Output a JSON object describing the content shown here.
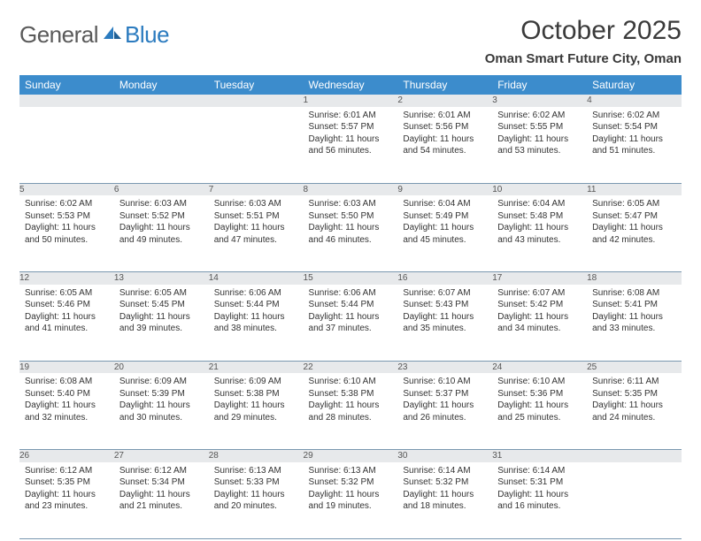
{
  "logo": {
    "word1": "General",
    "word2": "Blue"
  },
  "title": "October 2025",
  "location": "Oman Smart Future City, Oman",
  "colors": {
    "header_bg": "#3c8ccc",
    "header_text": "#ffffff",
    "daynum_bg": "#e7e9eb",
    "daynum_text": "#555555",
    "cell_border": "#7a98b0",
    "logo_gray": "#5a5a5a",
    "logo_blue": "#2b7bbf",
    "body_text": "#333333",
    "page_bg": "#ffffff"
  },
  "typography": {
    "title_fontsize": 30,
    "location_fontsize": 15,
    "weekday_fontsize": 12,
    "daynum_fontsize": 12,
    "cell_fontsize": 10,
    "logo_fontsize": 26
  },
  "weekdays": [
    "Sunday",
    "Monday",
    "Tuesday",
    "Wednesday",
    "Thursday",
    "Friday",
    "Saturday"
  ],
  "weeks": [
    [
      null,
      null,
      null,
      {
        "n": "1",
        "sunrise": "Sunrise: 6:01 AM",
        "sunset": "Sunset: 5:57 PM",
        "daylight": "Daylight: 11 hours and 56 minutes."
      },
      {
        "n": "2",
        "sunrise": "Sunrise: 6:01 AM",
        "sunset": "Sunset: 5:56 PM",
        "daylight": "Daylight: 11 hours and 54 minutes."
      },
      {
        "n": "3",
        "sunrise": "Sunrise: 6:02 AM",
        "sunset": "Sunset: 5:55 PM",
        "daylight": "Daylight: 11 hours and 53 minutes."
      },
      {
        "n": "4",
        "sunrise": "Sunrise: 6:02 AM",
        "sunset": "Sunset: 5:54 PM",
        "daylight": "Daylight: 11 hours and 51 minutes."
      }
    ],
    [
      {
        "n": "5",
        "sunrise": "Sunrise: 6:02 AM",
        "sunset": "Sunset: 5:53 PM",
        "daylight": "Daylight: 11 hours and 50 minutes."
      },
      {
        "n": "6",
        "sunrise": "Sunrise: 6:03 AM",
        "sunset": "Sunset: 5:52 PM",
        "daylight": "Daylight: 11 hours and 49 minutes."
      },
      {
        "n": "7",
        "sunrise": "Sunrise: 6:03 AM",
        "sunset": "Sunset: 5:51 PM",
        "daylight": "Daylight: 11 hours and 47 minutes."
      },
      {
        "n": "8",
        "sunrise": "Sunrise: 6:03 AM",
        "sunset": "Sunset: 5:50 PM",
        "daylight": "Daylight: 11 hours and 46 minutes."
      },
      {
        "n": "9",
        "sunrise": "Sunrise: 6:04 AM",
        "sunset": "Sunset: 5:49 PM",
        "daylight": "Daylight: 11 hours and 45 minutes."
      },
      {
        "n": "10",
        "sunrise": "Sunrise: 6:04 AM",
        "sunset": "Sunset: 5:48 PM",
        "daylight": "Daylight: 11 hours and 43 minutes."
      },
      {
        "n": "11",
        "sunrise": "Sunrise: 6:05 AM",
        "sunset": "Sunset: 5:47 PM",
        "daylight": "Daylight: 11 hours and 42 minutes."
      }
    ],
    [
      {
        "n": "12",
        "sunrise": "Sunrise: 6:05 AM",
        "sunset": "Sunset: 5:46 PM",
        "daylight": "Daylight: 11 hours and 41 minutes."
      },
      {
        "n": "13",
        "sunrise": "Sunrise: 6:05 AM",
        "sunset": "Sunset: 5:45 PM",
        "daylight": "Daylight: 11 hours and 39 minutes."
      },
      {
        "n": "14",
        "sunrise": "Sunrise: 6:06 AM",
        "sunset": "Sunset: 5:44 PM",
        "daylight": "Daylight: 11 hours and 38 minutes."
      },
      {
        "n": "15",
        "sunrise": "Sunrise: 6:06 AM",
        "sunset": "Sunset: 5:44 PM",
        "daylight": "Daylight: 11 hours and 37 minutes."
      },
      {
        "n": "16",
        "sunrise": "Sunrise: 6:07 AM",
        "sunset": "Sunset: 5:43 PM",
        "daylight": "Daylight: 11 hours and 35 minutes."
      },
      {
        "n": "17",
        "sunrise": "Sunrise: 6:07 AM",
        "sunset": "Sunset: 5:42 PM",
        "daylight": "Daylight: 11 hours and 34 minutes."
      },
      {
        "n": "18",
        "sunrise": "Sunrise: 6:08 AM",
        "sunset": "Sunset: 5:41 PM",
        "daylight": "Daylight: 11 hours and 33 minutes."
      }
    ],
    [
      {
        "n": "19",
        "sunrise": "Sunrise: 6:08 AM",
        "sunset": "Sunset: 5:40 PM",
        "daylight": "Daylight: 11 hours and 32 minutes."
      },
      {
        "n": "20",
        "sunrise": "Sunrise: 6:09 AM",
        "sunset": "Sunset: 5:39 PM",
        "daylight": "Daylight: 11 hours and 30 minutes."
      },
      {
        "n": "21",
        "sunrise": "Sunrise: 6:09 AM",
        "sunset": "Sunset: 5:38 PM",
        "daylight": "Daylight: 11 hours and 29 minutes."
      },
      {
        "n": "22",
        "sunrise": "Sunrise: 6:10 AM",
        "sunset": "Sunset: 5:38 PM",
        "daylight": "Daylight: 11 hours and 28 minutes."
      },
      {
        "n": "23",
        "sunrise": "Sunrise: 6:10 AM",
        "sunset": "Sunset: 5:37 PM",
        "daylight": "Daylight: 11 hours and 26 minutes."
      },
      {
        "n": "24",
        "sunrise": "Sunrise: 6:10 AM",
        "sunset": "Sunset: 5:36 PM",
        "daylight": "Daylight: 11 hours and 25 minutes."
      },
      {
        "n": "25",
        "sunrise": "Sunrise: 6:11 AM",
        "sunset": "Sunset: 5:35 PM",
        "daylight": "Daylight: 11 hours and 24 minutes."
      }
    ],
    [
      {
        "n": "26",
        "sunrise": "Sunrise: 6:12 AM",
        "sunset": "Sunset: 5:35 PM",
        "daylight": "Daylight: 11 hours and 23 minutes."
      },
      {
        "n": "27",
        "sunrise": "Sunrise: 6:12 AM",
        "sunset": "Sunset: 5:34 PM",
        "daylight": "Daylight: 11 hours and 21 minutes."
      },
      {
        "n": "28",
        "sunrise": "Sunrise: 6:13 AM",
        "sunset": "Sunset: 5:33 PM",
        "daylight": "Daylight: 11 hours and 20 minutes."
      },
      {
        "n": "29",
        "sunrise": "Sunrise: 6:13 AM",
        "sunset": "Sunset: 5:32 PM",
        "daylight": "Daylight: 11 hours and 19 minutes."
      },
      {
        "n": "30",
        "sunrise": "Sunrise: 6:14 AM",
        "sunset": "Sunset: 5:32 PM",
        "daylight": "Daylight: 11 hours and 18 minutes."
      },
      {
        "n": "31",
        "sunrise": "Sunrise: 6:14 AM",
        "sunset": "Sunset: 5:31 PM",
        "daylight": "Daylight: 11 hours and 16 minutes."
      },
      null
    ]
  ]
}
